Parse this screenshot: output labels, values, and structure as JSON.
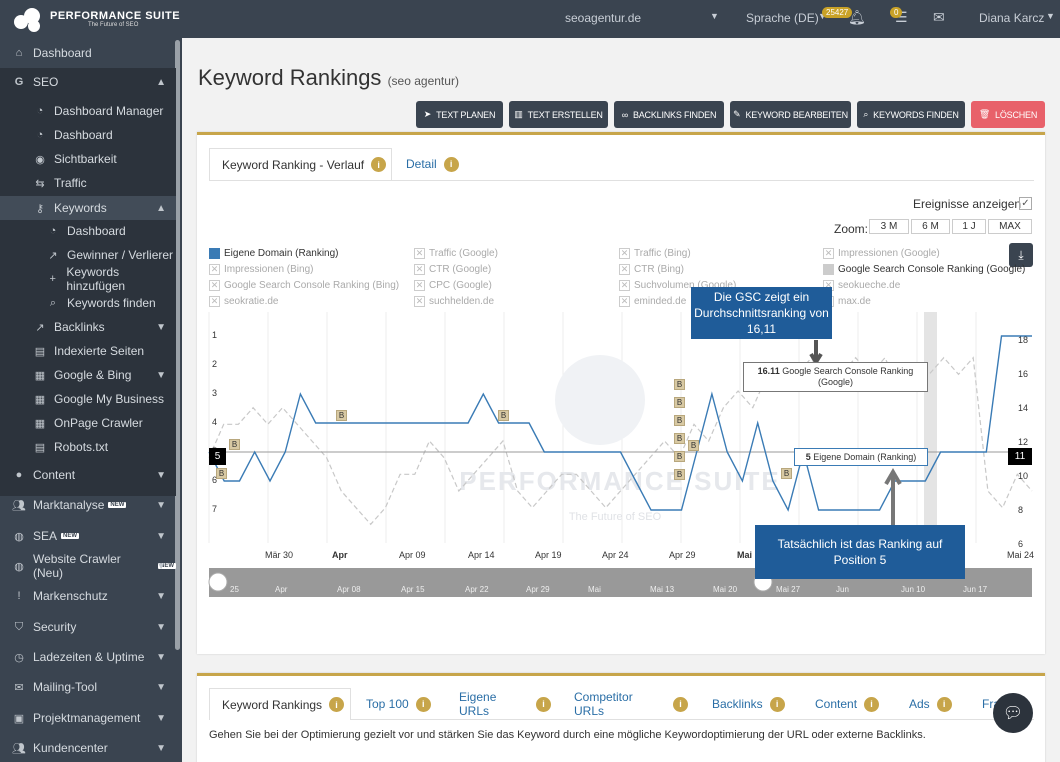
{
  "topbar": {
    "brand": "Performance Suite",
    "tagline": "The Future of SEO",
    "project": "seoagentur.de",
    "language": "Sprache (DE)",
    "notif_count": "25427",
    "task_count": "0",
    "user": "Diana Karcz"
  },
  "sidebar": {
    "dashboard": "Dashboard",
    "seo": "SEO",
    "seo_items": [
      "Dashboard Manager",
      "Dashboard",
      "Sichtbarkeit",
      "Traffic",
      "Keywords"
    ],
    "kw_items": [
      "Dashboard",
      "Gewinner / Verlierer",
      "Keywords hinzufügen",
      "Keywords finden"
    ],
    "seo_more": [
      "Backlinks",
      "Indexierte Seiten",
      "Google & Bing",
      "Google My Business",
      "OnPage Crawler",
      "Robots.txt"
    ],
    "sections": [
      "Content",
      "Marktanalyse",
      "SEA",
      "Website Crawler (Neu)",
      "Markenschutz",
      "Security",
      "Ladezeiten & Uptime",
      "Mailing-Tool",
      "Projektmanagement",
      "Kundencenter"
    ],
    "new_tag": "NEW"
  },
  "page": {
    "title": "Keyword Rankings",
    "subtitle": "(seo agentur)"
  },
  "toolbar": [
    "TEXT PLANEN",
    "TEXT ERSTELLEN",
    "BACKLINKS FINDEN",
    "KEYWORD BEARBEITEN",
    "KEYWORDS FINDEN",
    "LÖSCHEN"
  ],
  "chart_tabs": [
    "Keyword Ranking - Verlauf",
    "Detail"
  ],
  "events_label": "Ereignisse anzeigen",
  "zoom": {
    "label": "Zoom:",
    "options": [
      "3 M",
      "6 M",
      "1 J",
      "MAX"
    ]
  },
  "legend": [
    "Eigene Domain (Ranking)",
    "Traffic (Google)",
    "Traffic (Bing)",
    "Impressionen (Google)",
    "Impressionen (Bing)",
    "CTR (Google)",
    "CTR (Bing)",
    "Google Search Console Ranking (Google)",
    "Google Search Console Ranking (Bing)",
    "CPC (Google)",
    "Suchvolumen (Google)",
    "seokueche.de",
    "seokratie.de",
    "suchhelden.de",
    "eminded.de",
    "max.de"
  ],
  "callouts": {
    "gsc": "Die GSC zeigt ein Durchschnittsranking von 16,11",
    "actual": "Tatsächlich ist das Ranking auf Position 5"
  },
  "tooltips": {
    "gsc_value": "16.11",
    "gsc_series": "Google Search Console Ranking (Google)",
    "own_value": "5",
    "own_series": "Eigene Domain (Ranking)"
  },
  "watermark": {
    "title": "Performance Suite",
    "sub": "The Future of SEO"
  },
  "chart_data": {
    "type": "line",
    "x_ticks": [
      "Mär 30",
      "Apr",
      "Apr 09",
      "Apr 14",
      "Apr 19",
      "Apr 24",
      "Apr 29",
      "Mai",
      "Mai 24"
    ],
    "y_left_ticks": [
      "1",
      "2",
      "3",
      "4",
      "5",
      "6",
      "7"
    ],
    "y_right_ticks": [
      "18",
      "16",
      "14",
      "12",
      "10",
      "8",
      "6"
    ],
    "left_marker": "5",
    "right_marker": "11",
    "event_marker": "B",
    "navigator_ticks": [
      "25",
      "Apr",
      "Apr 08",
      "Apr 15",
      "Apr 22",
      "Apr 29",
      "Mai",
      "Mai 13",
      "Mai 20",
      "Mai 27",
      "Jun",
      "Jun 10",
      "Jun 17"
    ],
    "series": [
      {
        "name": "Eigene Domain (Ranking)",
        "axis": "left",
        "values": [
          5,
          6,
          6,
          5,
          6,
          5,
          3,
          4,
          4,
          4,
          4,
          4,
          4,
          4,
          4,
          4,
          4,
          4,
          3,
          4,
          4,
          4,
          5,
          5,
          5,
          5,
          5,
          5,
          6,
          7,
          7,
          7,
          5,
          3,
          5,
          6,
          4,
          6,
          7,
          5,
          7,
          7,
          7,
          7,
          7,
          6,
          6,
          6,
          5,
          5,
          5,
          5,
          1,
          1,
          1
        ]
      },
      {
        "name": "Google Search Console Ranking (Google)",
        "axis": "right",
        "values": [
          11,
          13,
          13,
          14,
          13,
          14,
          13,
          12,
          11,
          9,
          8,
          7,
          8,
          10,
          10,
          12,
          11,
          9,
          10,
          11,
          12,
          9,
          8,
          9,
          10,
          10,
          9,
          8,
          9,
          10,
          11,
          12,
          11,
          13,
          12,
          14,
          15,
          14,
          16,
          15,
          16,
          17,
          15,
          16,
          17,
          16,
          17,
          15,
          16,
          16,
          17,
          16,
          17,
          9,
          8,
          10,
          9
        ]
      }
    ]
  }
}
